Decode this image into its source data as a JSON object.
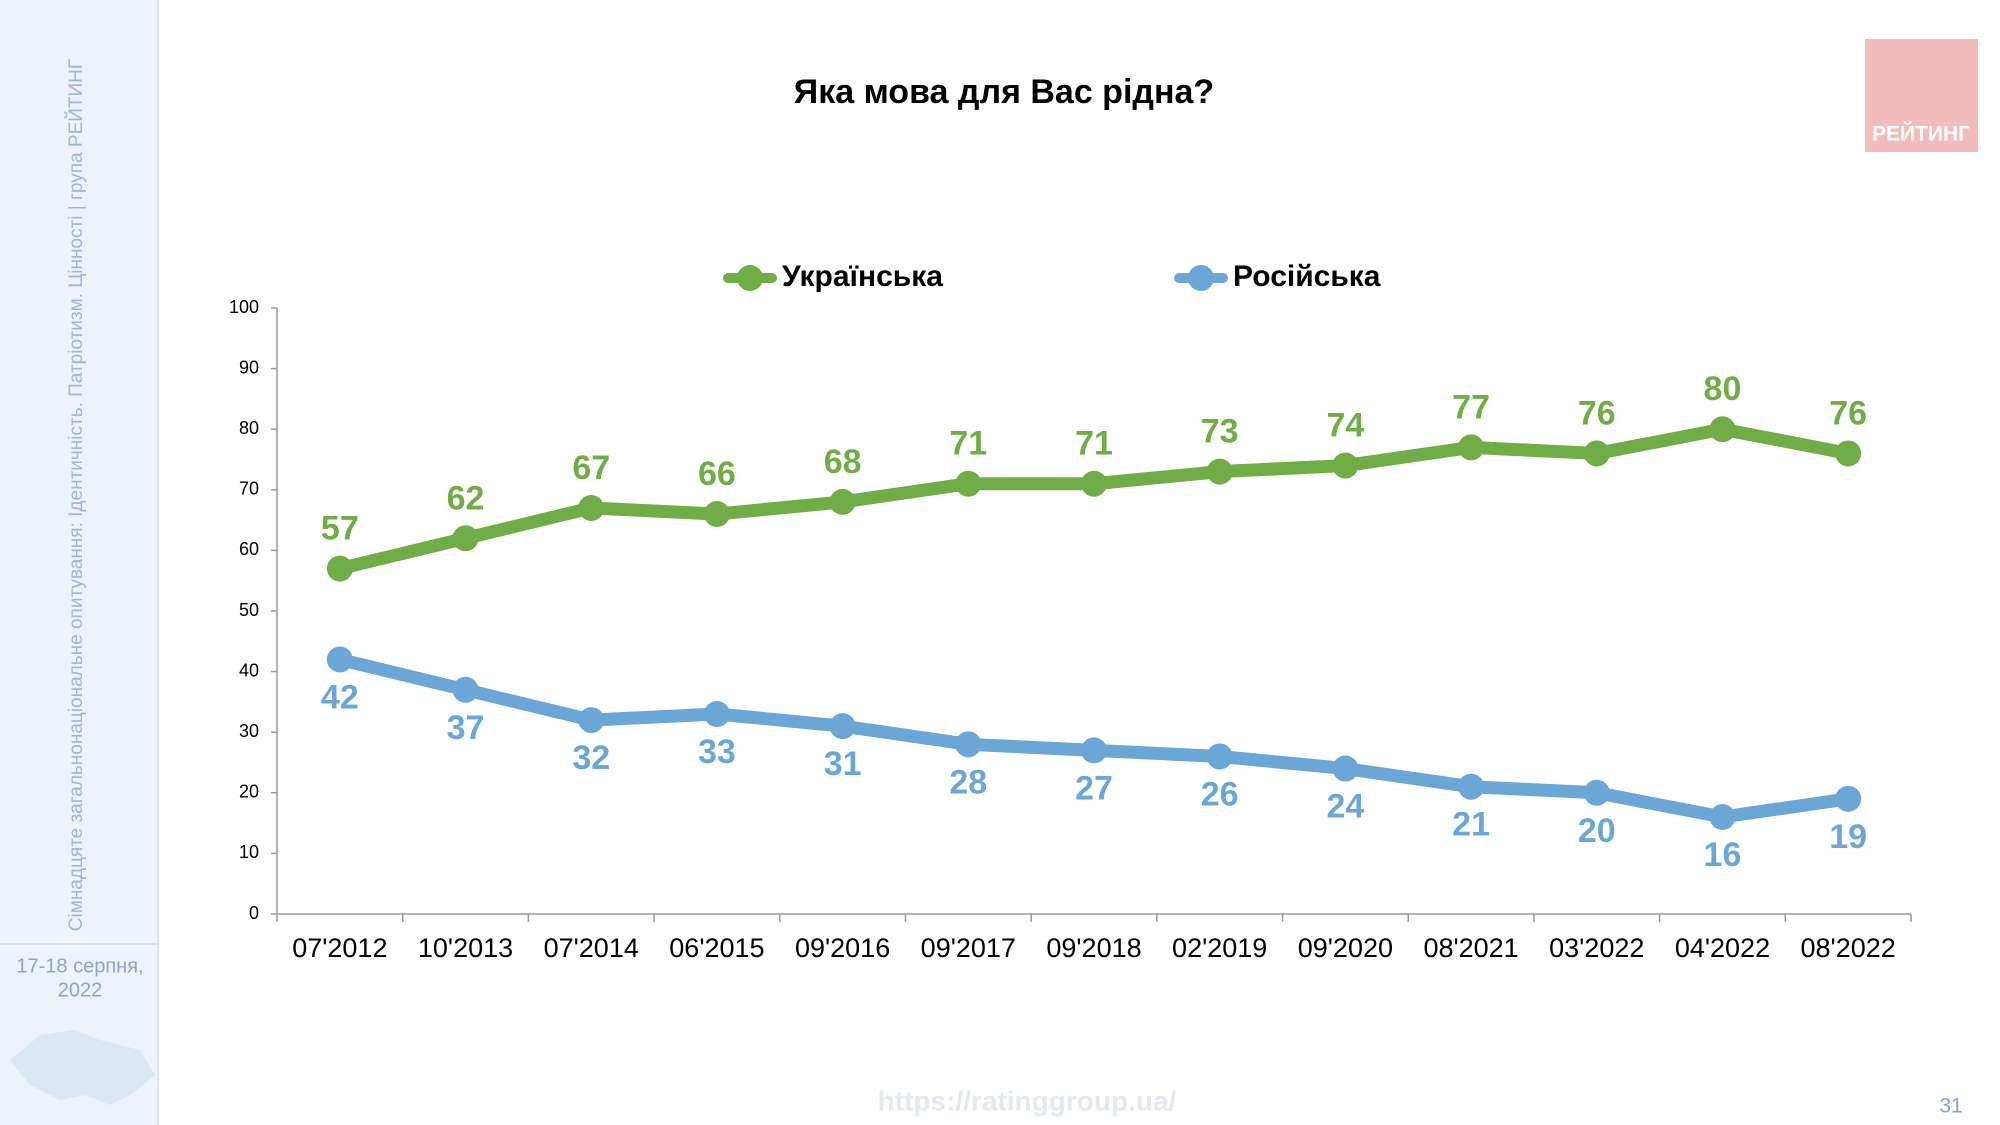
{
  "chart_data": {
    "type": "line",
    "title": "Яка мова для Вас рідна?",
    "categories": [
      "07'2012",
      "10'2013",
      "07'2014",
      "06'2015",
      "09'2016",
      "09'2017",
      "09'2018",
      "02'2019",
      "09'2020",
      "08'2021",
      "03'2022",
      "04'2022",
      "08'2022"
    ],
    "series": [
      {
        "name": "Українська",
        "color": "#70ad47",
        "values": [
          57,
          62,
          67,
          66,
          68,
          71,
          71,
          73,
          74,
          77,
          76,
          80,
          76
        ]
      },
      {
        "name": "Російська",
        "color": "#6aa6d6",
        "values": [
          42,
          37,
          32,
          33,
          31,
          28,
          27,
          26,
          24,
          21,
          20,
          16,
          19
        ]
      }
    ],
    "ylim": [
      0,
      100
    ],
    "yticks": [
      0,
      10,
      20,
      30,
      40,
      50,
      60,
      70,
      80,
      90,
      100
    ],
    "grid": false
  },
  "slide": {
    "side_title": "Сімнадцяте загальнонаціональне опитування: Ідентичність. Патріотизм. Цінності | група РЕЙТИНГ",
    "date_line1": "17-18 серпня,",
    "date_line2": "2022",
    "logo": "РЕЙТИНГ",
    "url": "https://ratinggroup.ua/",
    "page": "31"
  }
}
